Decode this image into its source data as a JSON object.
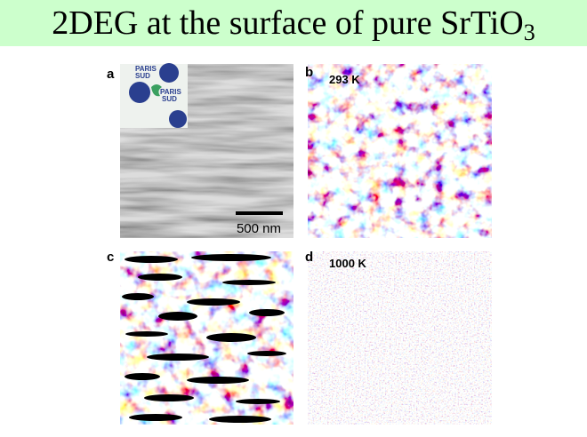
{
  "header": {
    "title": "2DEG at the surface of pure SrTiO",
    "title_subscript": "3"
  },
  "panels": [
    {
      "label": "a",
      "logo_texts": [
        "PARIS",
        "SUD",
        "PARIS",
        "SUD"
      ],
      "scale_bar": "500 nm"
    },
    {
      "label": "b",
      "temperature": "293 K"
    },
    {
      "label": "c"
    },
    {
      "label": "d",
      "temperature": "1000 K"
    }
  ]
}
